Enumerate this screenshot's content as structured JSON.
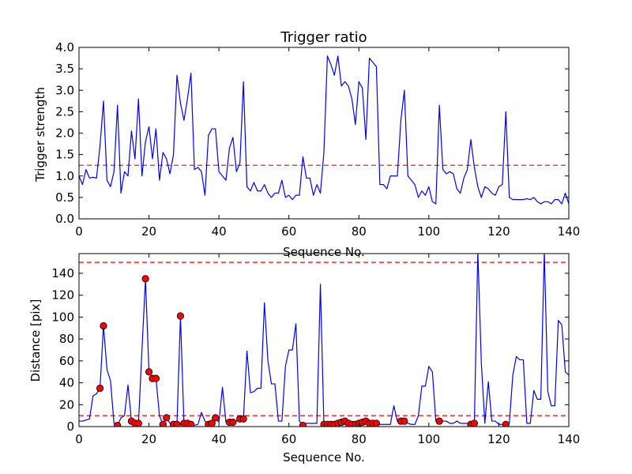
{
  "chart_data": [
    {
      "type": "line",
      "title": "Trigger ratio",
      "xlabel": "Sequence No.",
      "ylabel": "Trigger strength",
      "xlim": [
        0,
        140
      ],
      "ylim": [
        0,
        4.0
      ],
      "xticks": [
        "0",
        "20",
        "40",
        "60",
        "80",
        "100",
        "120",
        "140"
      ],
      "yticks": [
        "0.0",
        "0.5",
        "1.0",
        "1.5",
        "2.0",
        "2.5",
        "3.0",
        "3.5",
        "4.0"
      ],
      "threshold": 1.25,
      "series_color": "#0000ff",
      "threshold_color": "#ff0000",
      "series": [
        {
          "x": [
            0,
            1,
            2,
            3,
            4,
            5,
            6,
            7,
            8,
            9,
            10,
            11,
            12,
            13,
            14,
            15,
            16,
            17,
            18,
            19,
            20,
            21,
            22,
            23,
            24,
            25,
            26,
            27,
            28,
            29,
            30,
            31,
            32,
            33,
            34,
            35,
            36,
            37,
            38,
            39,
            40,
            41,
            42,
            43,
            44,
            45,
            46,
            47,
            48,
            49,
            50,
            51,
            52,
            53,
            54,
            55,
            56,
            57,
            58,
            59,
            60,
            61,
            62,
            63,
            64,
            65,
            66,
            67,
            68,
            69,
            70,
            71,
            72,
            73,
            74,
            75,
            76,
            77,
            78,
            79,
            80,
            81,
            82,
            83,
            84,
            85,
            86,
            87,
            88,
            89,
            90,
            91,
            92,
            93,
            94,
            95,
            96,
            97,
            98,
            99,
            100,
            101,
            102,
            103,
            104,
            105,
            106,
            107,
            108,
            109,
            110,
            111,
            112,
            113,
            114,
            115,
            116,
            117,
            118,
            119,
            120,
            121,
            122,
            123,
            124,
            125,
            126,
            127,
            128,
            129,
            130,
            131,
            132,
            133,
            134,
            135,
            136,
            137,
            138,
            139,
            140
          ],
          "y": [
            1.0,
            0.8,
            1.15,
            0.95,
            0.97,
            0.95,
            1.7,
            2.75,
            0.9,
            0.75,
            1.1,
            2.65,
            0.6,
            1.1,
            1.0,
            2.05,
            1.4,
            2.8,
            1.0,
            1.8,
            2.15,
            1.4,
            2.1,
            0.9,
            1.55,
            1.4,
            1.05,
            1.5,
            3.35,
            2.7,
            2.3,
            2.8,
            3.4,
            1.15,
            1.2,
            1.1,
            0.55,
            1.95,
            2.1,
            2.1,
            1.1,
            1.0,
            0.9,
            1.65,
            1.9,
            1.1,
            1.3,
            3.2,
            0.75,
            0.65,
            0.85,
            0.65,
            0.65,
            0.8,
            0.6,
            0.5,
            0.6,
            0.6,
            0.9,
            0.5,
            0.55,
            0.45,
            0.55,
            0.55,
            1.45,
            0.95,
            0.95,
            0.55,
            0.8,
            0.6,
            1.55,
            3.8,
            3.6,
            3.35,
            3.8,
            3.1,
            3.2,
            3.1,
            2.8,
            2.2,
            3.2,
            3.05,
            1.85,
            3.75,
            3.65,
            3.55,
            0.8,
            0.8,
            0.7,
            1.0,
            1.0,
            1.0,
            2.3,
            3.0,
            1.0,
            0.9,
            0.8,
            0.5,
            0.65,
            0.55,
            0.75,
            0.4,
            0.35,
            2.65,
            1.15,
            1.05,
            1.1,
            1.05,
            0.7,
            0.6,
            0.95,
            1.15,
            1.85,
            1.2,
            0.75,
            0.5,
            0.75,
            0.7,
            0.6,
            0.55,
            0.75,
            0.8,
            2.5,
            0.5,
            0.45,
            0.45,
            0.45,
            0.45,
            0.47,
            0.45,
            0.5,
            0.4,
            0.35,
            0.4,
            0.4,
            0.35,
            0.45,
            0.45,
            0.35,
            0.6,
            0.35
          ]
        }
      ]
    },
    {
      "type": "line",
      "title": "",
      "xlabel": "Sequence No.",
      "ylabel": "Distance [pix]",
      "xlim": [
        0,
        140
      ],
      "ylim": [
        0,
        158
      ],
      "xticks": [
        "0",
        "20",
        "40",
        "60",
        "80",
        "100",
        "120",
        "140"
      ],
      "yticks": [
        "0",
        "20",
        "40",
        "60",
        "80",
        "100",
        "120",
        "140"
      ],
      "thresholds": [
        10,
        150
      ],
      "series_color": "#0000ff",
      "threshold_color": "#ff0000",
      "marker_color": "#ff0000",
      "series": [
        {
          "x": [
            0,
            1,
            2,
            3,
            4,
            5,
            6,
            7,
            8,
            9,
            10,
            11,
            12,
            13,
            14,
            15,
            16,
            17,
            18,
            19,
            20,
            21,
            22,
            23,
            24,
            25,
            26,
            27,
            28,
            29,
            30,
            31,
            32,
            33,
            34,
            35,
            36,
            37,
            38,
            39,
            40,
            41,
            42,
            43,
            44,
            45,
            46,
            47,
            48,
            49,
            50,
            51,
            52,
            53,
            54,
            55,
            56,
            57,
            58,
            59,
            60,
            61,
            62,
            63,
            64,
            65,
            66,
            67,
            68,
            69,
            70,
            71,
            72,
            73,
            74,
            75,
            76,
            77,
            78,
            79,
            80,
            81,
            82,
            83,
            84,
            85,
            86,
            87,
            88,
            89,
            90,
            91,
            92,
            93,
            94,
            95,
            96,
            97,
            98,
            99,
            100,
            101,
            102,
            103,
            104,
            105,
            106,
            107,
            108,
            109,
            110,
            111,
            112,
            113,
            114,
            115,
            116,
            117,
            118,
            119,
            120,
            121,
            122,
            123,
            124,
            125,
            126,
            127,
            128,
            129,
            130,
            131,
            132,
            133,
            134,
            135,
            136,
            137,
            138,
            139,
            140
          ],
          "y": [
            5,
            5,
            6,
            7,
            28,
            30,
            35,
            92,
            52,
            42,
            3,
            1,
            8,
            10,
            38,
            5,
            3,
            3,
            70,
            135,
            50,
            44,
            44,
            10,
            2,
            8,
            3,
            2,
            2,
            101,
            3,
            3,
            2,
            1,
            2,
            13,
            5,
            2,
            3,
            8,
            4,
            36,
            4,
            4,
            5,
            5,
            7,
            7,
            69,
            31,
            32,
            35,
            35,
            113,
            60,
            39,
            39,
            5,
            5,
            55,
            70,
            70,
            94,
            5,
            1,
            3,
            3,
            3,
            3,
            130,
            2,
            2,
            2,
            2,
            3,
            4,
            5,
            3,
            2,
            2,
            3,
            4,
            5,
            3,
            3,
            3,
            2,
            2,
            2,
            2,
            19,
            5,
            5,
            5,
            3,
            2,
            2,
            10,
            37,
            37,
            55,
            50,
            5,
            5,
            5,
            5,
            3,
            3,
            5,
            3,
            3,
            3,
            2,
            3,
            160,
            58,
            3,
            41,
            5,
            5,
            2,
            2,
            2,
            3,
            47,
            64,
            61,
            61,
            3,
            3,
            33,
            25,
            25,
            160,
            32,
            19,
            19,
            97,
            93,
            50,
            47
          ]
        }
      ],
      "markers": {
        "x": [
          6,
          7,
          11,
          15,
          16,
          17,
          19,
          20,
          21,
          22,
          24,
          25,
          27,
          28,
          29,
          30,
          31,
          32,
          37,
          38,
          39,
          43,
          44,
          46,
          47,
          64,
          70,
          71,
          72,
          73,
          74,
          75,
          76,
          77,
          78,
          79,
          80,
          81,
          82,
          83,
          84,
          85,
          92,
          93,
          103,
          112,
          113,
          122
        ],
        "y": [
          35,
          92,
          1,
          5,
          3,
          3,
          135,
          50,
          44,
          44,
          2,
          8,
          2,
          2,
          101,
          3,
          3,
          2,
          2,
          3,
          8,
          4,
          4,
          7,
          7,
          1,
          2,
          2,
          2,
          2,
          3,
          4,
          5,
          3,
          2,
          2,
          3,
          4,
          5,
          3,
          3,
          3,
          5,
          5,
          5,
          2,
          3,
          2
        ]
      }
    }
  ]
}
